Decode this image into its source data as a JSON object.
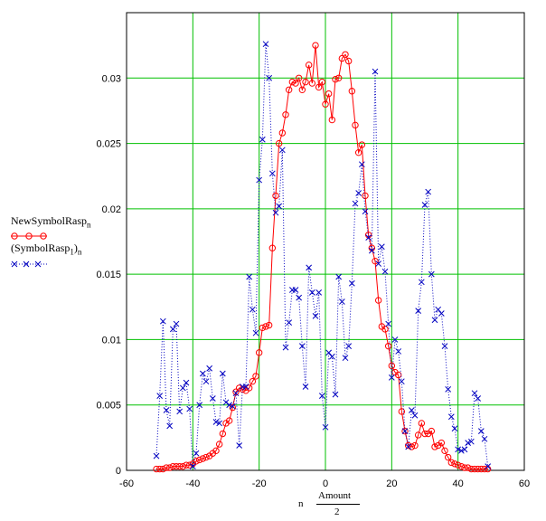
{
  "chart_data": {
    "type": "line",
    "xlim": [
      -60,
      60
    ],
    "ylim": [
      0,
      0.035
    ],
    "x_ticks": [
      "-60",
      "-40",
      "-20",
      "0",
      "20",
      "40",
      "60"
    ],
    "y_ticks": [
      "0",
      "0.005",
      "0.01",
      "0.015",
      "0.02",
      "0.025",
      "0.03"
    ],
    "grid": true,
    "xlabel": {
      "prefix": "n",
      "numerator": "Amount",
      "denominator": "2"
    },
    "legend": {
      "series1_name": "NewSymbolRasp",
      "series1_sub": "n",
      "series2_name": "(SymbolRasp",
      "series2_inner_sub": "1",
      "series2_close": ")",
      "series2_sub": "n"
    },
    "colors": {
      "series1": "#ff0000",
      "series2": "#0000c0",
      "grid": "#00c000"
    },
    "x": [
      -51,
      -50,
      -49,
      -48,
      -47,
      -46,
      -45,
      -44,
      -43,
      -42,
      -41,
      -40,
      -39,
      -38,
      -37,
      -36,
      -35,
      -34,
      -33,
      -32,
      -31,
      -30,
      -29,
      -28,
      -27,
      -26,
      -25,
      -24,
      -23,
      -22,
      -21,
      -20,
      -19,
      -18,
      -17,
      -16,
      -15,
      -14,
      -13,
      -12,
      -11,
      -10,
      -9,
      -8,
      -7,
      -6,
      -5,
      -4,
      -3,
      -2,
      -1,
      0,
      1,
      2,
      3,
      4,
      5,
      6,
      7,
      8,
      9,
      10,
      11,
      12,
      13,
      14,
      15,
      16,
      17,
      18,
      19,
      20,
      21,
      22,
      23,
      24,
      25,
      26,
      27,
      28,
      29,
      30,
      31,
      32,
      33,
      34,
      35,
      36,
      37,
      38,
      39,
      40,
      41,
      42,
      43,
      44,
      45,
      46,
      47,
      48,
      49
    ],
    "series": [
      {
        "values": [
          0.0001,
          0.0001,
          0.0001,
          0.0002,
          0.0002,
          0.0003,
          0.0003,
          0.0003,
          0.0003,
          0.0004,
          0.0004,
          0.0005,
          0.0007,
          0.0008,
          0.0009,
          0.001,
          0.0011,
          0.0013,
          0.0015,
          0.002,
          0.0028,
          0.0036,
          0.0038,
          0.0048,
          0.006,
          0.0063,
          0.0062,
          0.0061,
          0.0063,
          0.0068,
          0.0072,
          0.009,
          0.0109,
          0.011,
          0.0111,
          0.017,
          0.021,
          0.025,
          0.0258,
          0.0272,
          0.0291,
          0.0297,
          0.0296,
          0.03,
          0.0291,
          0.0297,
          0.031,
          0.0296,
          0.0325,
          0.0293,
          0.0297,
          0.028,
          0.0288,
          0.0268,
          0.0299,
          0.03,
          0.0315,
          0.0318,
          0.0313,
          0.029,
          0.0264,
          0.0243,
          0.0249,
          0.021,
          0.018,
          0.017,
          0.016,
          0.013,
          0.011,
          0.0108,
          0.0095,
          0.008,
          0.0075,
          0.0073,
          0.0045,
          0.003,
          0.0019,
          0.0018,
          0.0019,
          0.0027,
          0.0036,
          0.0028,
          0.0028,
          0.003,
          0.0018,
          0.0019,
          0.0021,
          0.0015,
          0.001,
          0.0006,
          0.0005,
          0.0004,
          0.0003,
          0.0002,
          0.0002,
          0.0001,
          0.0001,
          0.0001,
          0.0001,
          0.0001,
          0.0001
        ]
      },
      {
        "values": [
          0.0011,
          0.0057,
          0.0114,
          0.0046,
          0.0034,
          0.0108,
          0.0112,
          0.0045,
          0.0063,
          0.0067,
          0.0047,
          0.0003,
          0.0013,
          0.005,
          0.0074,
          0.0068,
          0.0078,
          0.0055,
          0.0037,
          0.0036,
          0.0074,
          0.0052,
          0.005,
          0.0049,
          0.0059,
          0.0019,
          0.0064,
          0.0064,
          0.0148,
          0.0123,
          0.0105,
          0.0222,
          0.0253,
          0.0326,
          0.03,
          0.0227,
          0.0197,
          0.0202,
          0.0245,
          0.0094,
          0.0113,
          0.0138,
          0.0138,
          0.0132,
          0.0095,
          0.0064,
          0.0155,
          0.0136,
          0.0118,
          0.0136,
          0.0057,
          0.0033,
          0.009,
          0.0087,
          0.0058,
          0.0148,
          0.0129,
          0.0086,
          0.0095,
          0.0143,
          0.0204,
          0.0212,
          0.0234,
          0.0198,
          0.0178,
          0.0168,
          0.0305,
          0.0158,
          0.0171,
          0.0152,
          0.0112,
          0.0071,
          0.01,
          0.0091,
          0.0068,
          0.003,
          0.0018,
          0.0046,
          0.0042,
          0.0122,
          0.0144,
          0.0203,
          0.0213,
          0.015,
          0.0115,
          0.0123,
          0.012,
          0.0095,
          0.0062,
          0.0041,
          0.0032,
          0.0016,
          0.0015,
          0.0016,
          0.0021,
          0.0022,
          0.0059,
          0.0055,
          0.003,
          0.0024,
          0.0003
        ]
      }
    ]
  }
}
